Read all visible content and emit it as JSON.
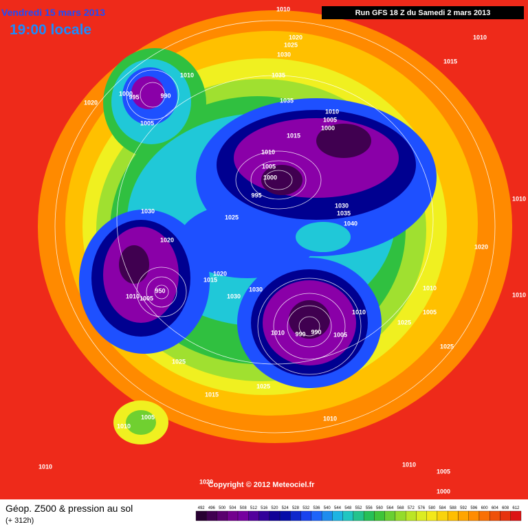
{
  "header": {
    "date": "Vendredi 15 mars 2013",
    "time": "19:00 locale",
    "run": "Run GFS 18 Z du Samedi 2 mars 2013"
  },
  "footer": {
    "title": "Géop. Z500 & pression au sol",
    "lead": "(+ 312h)",
    "copyright": "Copyright © 2012 Meteociel.fr"
  },
  "legend": {
    "levels": [
      "492",
      "496",
      "500",
      "504",
      "508",
      "512",
      "516",
      "520",
      "524",
      "528",
      "532",
      "536",
      "540",
      "544",
      "548",
      "552",
      "556",
      "560",
      "564",
      "568",
      "572",
      "576",
      "580",
      "584",
      "588",
      "592",
      "596",
      "600",
      "604",
      "608",
      "612"
    ]
  },
  "pressure_labels": [
    "1010",
    "1020",
    "1025",
    "1030",
    "1035",
    "1035",
    "1015",
    "1010",
    "1010",
    "1000",
    "995",
    "990",
    "1020",
    "1005",
    "1010",
    "1005",
    "1000",
    "1015",
    "1010",
    "1005",
    "1000",
    "995",
    "1030",
    "1035",
    "1040",
    "1025",
    "1030",
    "1020",
    "1010",
    "1020",
    "1015",
    "1020",
    "1030",
    "1030",
    "1010",
    "1005",
    "950",
    "1010",
    "1010",
    "1005",
    "1010",
    "1010",
    "990",
    "990",
    "1005",
    "1025",
    "1025",
    "1025",
    "1025",
    "1015",
    "1005",
    "1010",
    "1010",
    "1010",
    "1010",
    "1005",
    "1000",
    "1020"
  ]
}
